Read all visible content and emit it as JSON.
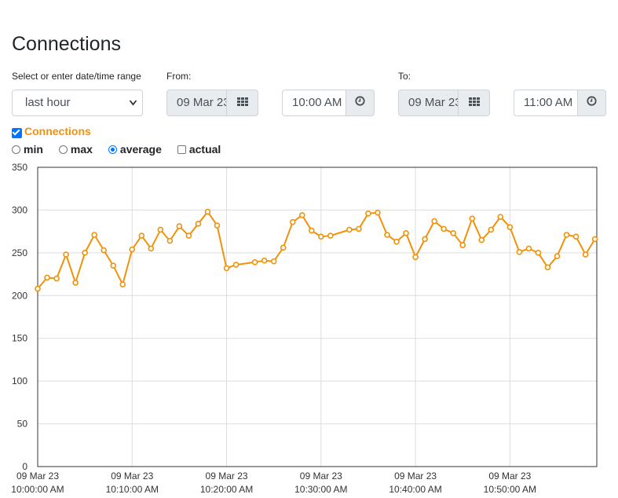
{
  "page": {
    "title": "Connections"
  },
  "range": {
    "label": "Select or enter date/time range",
    "selected": "last hour"
  },
  "from": {
    "label": "From:",
    "date": "09 Mar 23",
    "time": "10:00 AM"
  },
  "to": {
    "label": "To:",
    "date": "09 Mar 23",
    "time": "11:00 AM"
  },
  "series_toggle": {
    "label": "Connections",
    "checked": true
  },
  "aggregates": [
    {
      "label": "min",
      "type": "radio",
      "checked": false
    },
    {
      "label": "max",
      "type": "radio",
      "checked": false
    },
    {
      "label": "average",
      "type": "radio",
      "checked": true
    },
    {
      "label": "actual",
      "type": "checkbox",
      "checked": false
    }
  ],
  "colors": {
    "line": "#f0920a",
    "grid": "#dddddd",
    "axis_text": "#333333"
  },
  "icons": {
    "calendar": "calendar-grid-icon",
    "clock": "clock-icon"
  },
  "chart_data": {
    "type": "line",
    "ylim": [
      0,
      350
    ],
    "y_ticks": [
      0,
      50,
      100,
      150,
      200,
      250,
      300,
      350
    ],
    "x_ticks": [
      {
        "minute": 0,
        "date": "09 Mar 23",
        "time": "10:00:00 AM"
      },
      {
        "minute": 10,
        "date": "09 Mar 23",
        "time": "10:10:00 AM"
      },
      {
        "minute": 20,
        "date": "09 Mar 23",
        "time": "10:20:00 AM"
      },
      {
        "minute": 30,
        "date": "09 Mar 23",
        "time": "10:30:00 AM"
      },
      {
        "minute": 40,
        "date": "09 Mar 23",
        "time": "10:40:00 AM"
      },
      {
        "minute": 50,
        "date": "09 Mar 23",
        "time": "10:50:00 AM"
      }
    ],
    "x_range": [
      0,
      59.2
    ],
    "x": [
      0,
      1,
      2,
      3,
      4,
      5,
      6,
      7,
      8,
      9,
      10,
      11,
      12,
      13,
      14,
      15,
      16,
      17,
      18,
      19,
      20,
      21,
      23,
      24,
      25,
      26,
      27,
      28,
      29,
      30,
      31,
      33,
      34,
      35,
      36,
      37,
      38,
      39,
      40,
      41,
      42,
      43,
      44,
      45,
      46,
      47,
      48,
      49,
      50,
      51,
      52,
      53,
      54,
      55,
      56,
      57,
      58,
      59
    ],
    "series": [
      {
        "values": [
          208,
          221,
          220,
          248,
          215,
          250,
          271,
          253,
          235,
          213,
          254,
          270,
          255,
          277,
          264,
          281,
          270,
          284,
          298,
          282,
          232,
          236,
          239,
          241,
          240,
          256,
          286,
          294,
          276,
          269,
          270,
          277,
          278,
          296,
          297,
          271,
          263,
          273,
          245,
          266,
          287,
          278,
          273,
          259,
          290,
          265,
          277,
          292,
          280,
          251,
          255,
          250,
          233,
          246,
          271,
          269,
          248,
          266
        ]
      }
    ]
  }
}
